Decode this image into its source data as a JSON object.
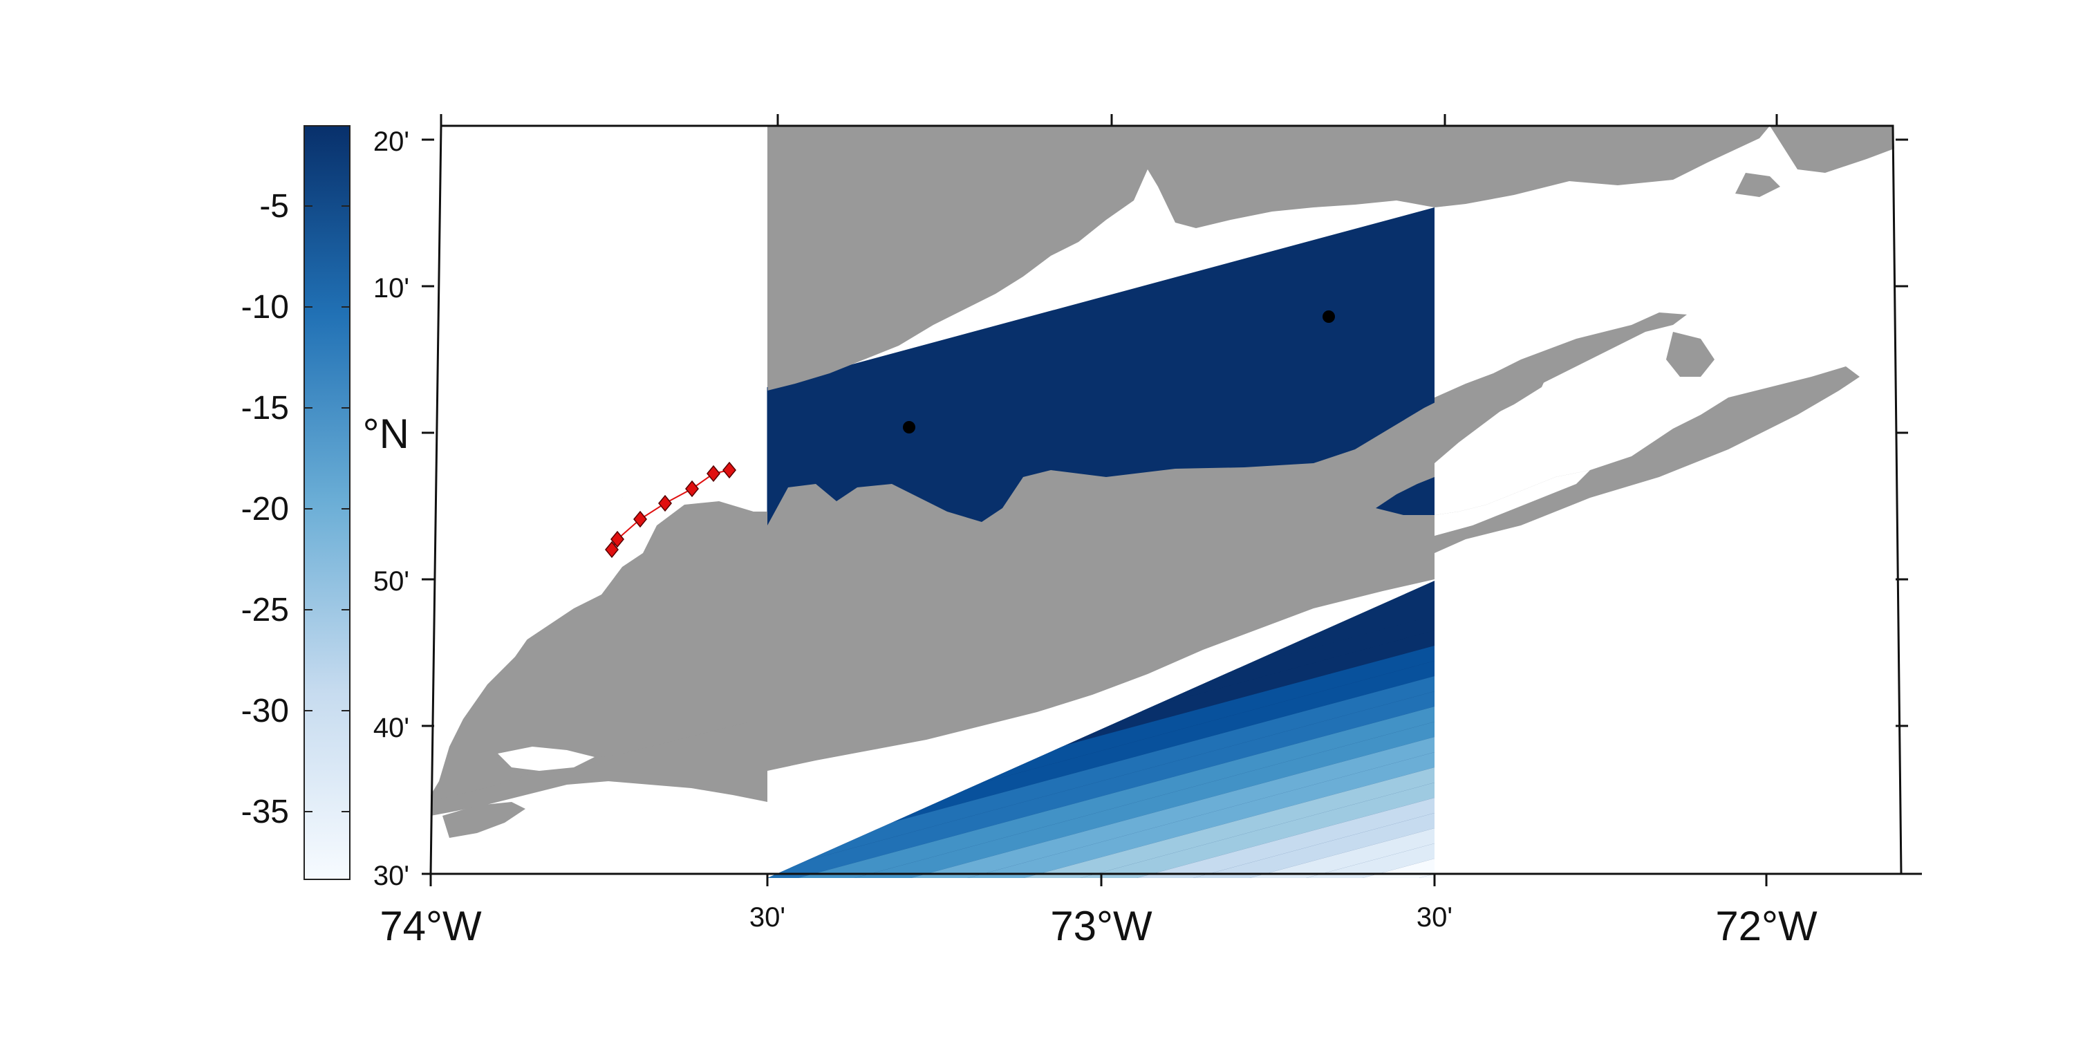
{
  "figure": {
    "type": "map",
    "region_features": {
      "land_color": "#999999",
      "water_color": "#ffffff",
      "bathymetry_colormap": [
        "#f7fbff",
        "#deebf7",
        "#c6dbef",
        "#9ecae1",
        "#6baed6",
        "#4292c6",
        "#2171b5",
        "#08519c",
        "#08306b"
      ]
    }
  },
  "colorbar": {
    "tick_labels": [
      "-5",
      "-10",
      "-15",
      "-20",
      "-25",
      "-30",
      "-35"
    ],
    "min_color": "#f7fbff",
    "max_color": "#08306b"
  },
  "axes": {
    "x_tick_labels": [
      "74°W",
      "30'",
      "73°W",
      "30'",
      "72°W"
    ],
    "y_tick_labels": [
      "20'",
      "10'",
      "°N",
      "50'",
      "40'",
      "30'"
    ]
  },
  "overlay": {
    "red_track_marker_color": "#e01010",
    "black_point_color": "#000000"
  }
}
